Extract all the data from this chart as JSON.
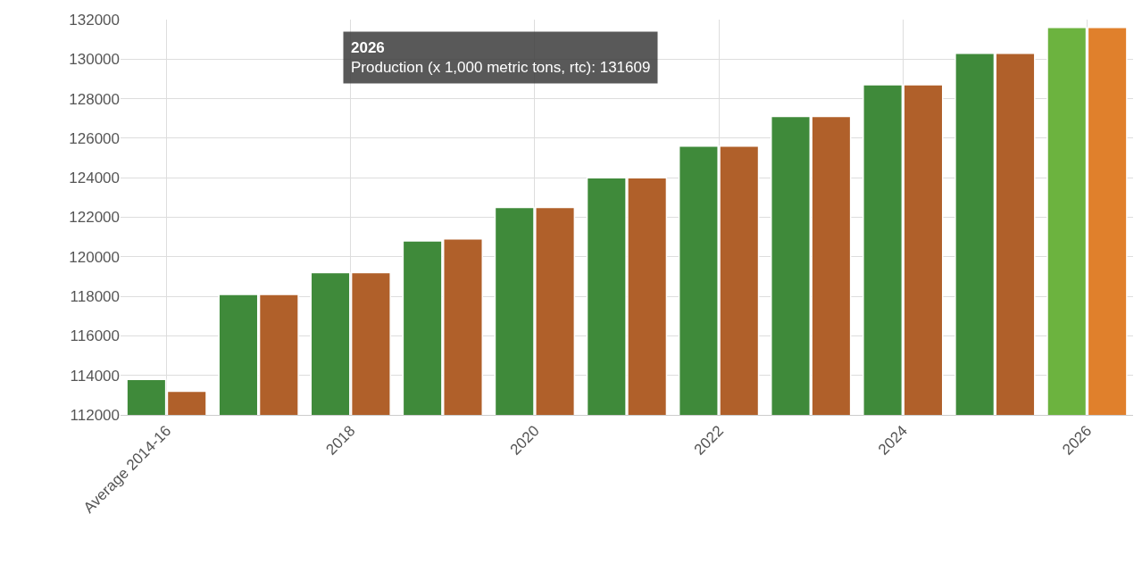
{
  "chart_data": {
    "type": "bar",
    "categories": [
      "Average 2014-16",
      null,
      "2018",
      null,
      "2020",
      null,
      "2022",
      null,
      "2024",
      null,
      "2026"
    ],
    "series": [
      {
        "colors": [
          "#3f8a3a",
          "#3f8a3a",
          "#3f8a3a",
          "#3f8a3a",
          "#3f8a3a",
          "#3f8a3a",
          "#3f8a3a",
          "#3f8a3a",
          "#3f8a3a",
          "#3f8a3a",
          "#6cb33f"
        ],
        "values": [
          113800,
          118100,
          119200,
          120800,
          122500,
          124000,
          125600,
          127100,
          128700,
          130300,
          131609
        ]
      },
      {
        "colors": [
          "#b0602a",
          "#b0602a",
          "#b0602a",
          "#b0602a",
          "#b0602a",
          "#b0602a",
          "#b0602a",
          "#b0602a",
          "#b0602a",
          "#b0602a",
          "#e0802c"
        ],
        "values": [
          113200,
          118100,
          119200,
          120900,
          122500,
          124000,
          125600,
          127100,
          128700,
          130300,
          131600
        ]
      }
    ],
    "annotations": [
      "2026",
      "Production (x 1,000 metric tons, rtc): 131609"
    ],
    "ylim": [
      112000,
      132000
    ],
    "yticks": [
      112000,
      114000,
      116000,
      118000,
      120000,
      122000,
      124000,
      126000,
      128000,
      130000,
      132000
    ],
    "grid": true
  }
}
